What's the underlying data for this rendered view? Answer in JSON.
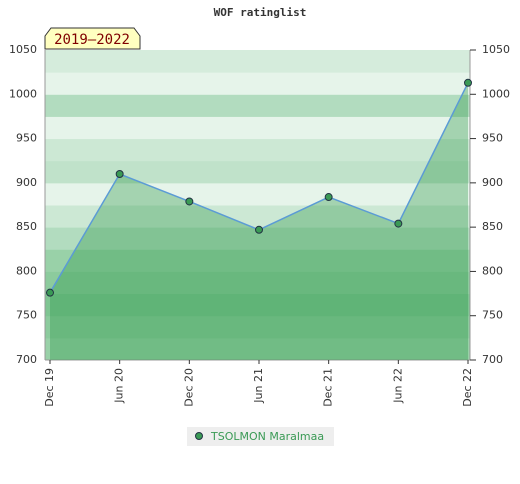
{
  "chart_data": {
    "type": "line",
    "title": "WOF ratinglist",
    "annotation": "2019–2022",
    "categories": [
      "Dec 19",
      "Jun 20",
      "Dec 20",
      "Jun 21",
      "Dec 21",
      "Jun 22",
      "Dec 22"
    ],
    "series": [
      {
        "name": "TSOLMON Maralmaa",
        "color": "#5b9bd5",
        "values": [
          776,
          910,
          879,
          847,
          884,
          854,
          1013
        ]
      }
    ],
    "ylim": [
      700,
      1050
    ],
    "yticks": [
      700,
      750,
      800,
      850,
      900,
      950,
      1000,
      1050
    ]
  }
}
